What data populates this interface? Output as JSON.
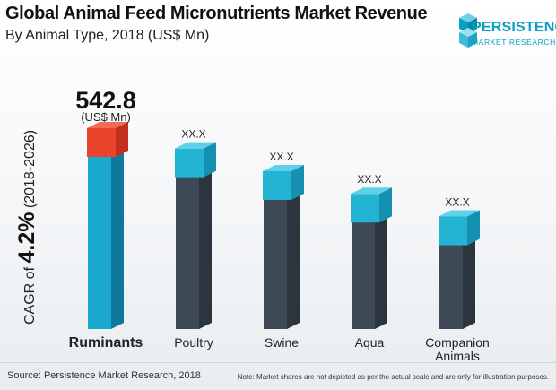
{
  "header": {
    "title": "Global Animal Feed Micronutrients Market Revenue",
    "subtitle": "By Animal Type, 2018 (US$ Mn)"
  },
  "logo": {
    "name": "PERSISTENCE",
    "tagline": "MARKET RESEARCH"
  },
  "cagr": {
    "prefix": "CAGR of ",
    "value": "4.2%",
    "suffix": " (2018-2026)"
  },
  "footer": {
    "source": "Source: Persistence Market Research, 2018",
    "note": "Note: Market shares are not depicted as per the actual scale and are only for illustration purposes."
  },
  "colors": {
    "bar_body": "#3e4a55",
    "bar_side": "#2c353e",
    "highlight_cube": "#e8432d",
    "cube": "#23b3d3",
    "ruminants_body": "#1aa9cc"
  },
  "chart_data": {
    "type": "bar",
    "title": "Global Animal Feed Micronutrients Market Revenue",
    "subtitle": "By Animal Type, 2018 (US$ Mn)",
    "categories": [
      "Ruminants",
      "Poultry",
      "Swine",
      "Aqua",
      "Companion Animals"
    ],
    "values": [
      542.8,
      480,
      410,
      340,
      270
    ],
    "data_labels": [
      "542.8",
      "XX.X",
      "XX.X",
      "XX.X",
      "XX.X"
    ],
    "highlight_unit": "(US$ Mn)",
    "highlight_index": 0,
    "grid": false,
    "legend": "none"
  }
}
